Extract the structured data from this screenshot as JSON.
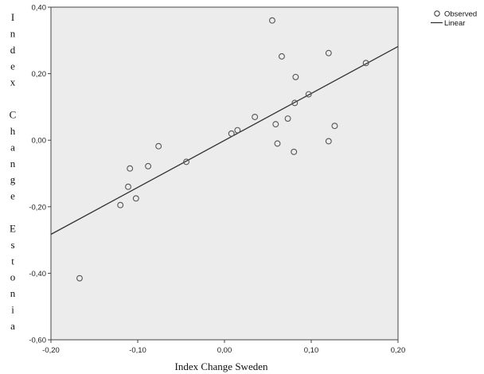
{
  "chart_data": {
    "type": "scatter",
    "title": "",
    "xlabel": "Index Change Sweden",
    "ylabel": "Index Change Estonia",
    "xlim": [
      -0.2,
      0.2
    ],
    "ylim": [
      -0.6,
      0.4
    ],
    "x_ticks": [
      -0.2,
      -0.1,
      0.0,
      0.1,
      0.2
    ],
    "x_tick_labels": [
      "-0,20",
      "-0,10",
      "0,00",
      "0,10",
      "0,20"
    ],
    "y_ticks": [
      0.4,
      0.2,
      0.0,
      -0.2,
      -0.4,
      -0.6
    ],
    "y_tick_labels": [
      "0,40",
      "0,20",
      "0,00",
      "-0,20",
      "-0,40",
      "-0,60"
    ],
    "grid": false,
    "background_color": "#ececec",
    "point_color": "#555555",
    "line_color": "#333333",
    "legend": {
      "position": "top-right outside",
      "entries": [
        {
          "label": "Observed",
          "marker": "open-circle"
        },
        {
          "label": "Linear",
          "marker": "line"
        }
      ]
    },
    "series": [
      {
        "name": "Observed",
        "type": "scatter",
        "points": [
          {
            "x": -0.167,
            "y": -0.415
          },
          {
            "x": -0.12,
            "y": -0.195
          },
          {
            "x": -0.111,
            "y": -0.14
          },
          {
            "x": -0.109,
            "y": -0.085
          },
          {
            "x": -0.102,
            "y": -0.175
          },
          {
            "x": -0.088,
            "y": -0.078
          },
          {
            "x": -0.076,
            "y": -0.018
          },
          {
            "x": -0.044,
            "y": -0.065
          },
          {
            "x": 0.008,
            "y": 0.02
          },
          {
            "x": 0.015,
            "y": 0.03
          },
          {
            "x": 0.035,
            "y": 0.07
          },
          {
            "x": 0.055,
            "y": 0.36
          },
          {
            "x": 0.059,
            "y": 0.048
          },
          {
            "x": 0.061,
            "y": -0.01
          },
          {
            "x": 0.066,
            "y": 0.252
          },
          {
            "x": 0.073,
            "y": 0.065
          },
          {
            "x": 0.08,
            "y": -0.035
          },
          {
            "x": 0.081,
            "y": 0.112
          },
          {
            "x": 0.082,
            "y": 0.19
          },
          {
            "x": 0.097,
            "y": 0.138
          },
          {
            "x": 0.12,
            "y": 0.262
          },
          {
            "x": 0.12,
            "y": -0.003
          },
          {
            "x": 0.127,
            "y": 0.043
          },
          {
            "x": 0.163,
            "y": 0.232
          }
        ]
      },
      {
        "name": "Linear",
        "type": "line",
        "x": [
          -0.2,
          0.22
        ],
        "y": [
          -0.283,
          0.31
        ]
      }
    ]
  }
}
